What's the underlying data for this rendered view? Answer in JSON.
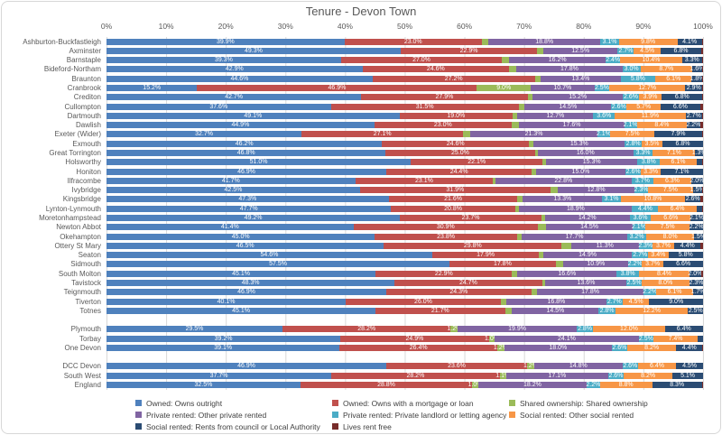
{
  "chart_data": {
    "type": "bar",
    "orientation": "horizontal-stacked",
    "title": "Tenure - Devon Town",
    "x_axis": {
      "range": [
        0,
        100
      ],
      "ticks": [
        "0%",
        "10%",
        "20%",
        "30%",
        "40%",
        "50%",
        "60%",
        "70%",
        "80%",
        "90%",
        "100%"
      ]
    },
    "grid": true,
    "legend_position": "bottom",
    "series": [
      {
        "key": "owned_outright",
        "label": "Owned: Owns outright",
        "color": "#4F81BD"
      },
      {
        "key": "owned_mortgage",
        "label": "Owned: Owns with a mortgage or loan",
        "color": "#C0504D"
      },
      {
        "key": "shared_ownership",
        "label": "Shared ownership: Shared ownership",
        "color": "#9BBB59"
      },
      {
        "key": "private_other",
        "label": "Private rented: Other private rented",
        "color": "#8064A2"
      },
      {
        "key": "private_landlord",
        "label": "Private rented: Private landlord or letting agency",
        "color": "#4BACC6"
      },
      {
        "key": "social_other",
        "label": "Social rented: Other social rented",
        "color": "#F79646"
      },
      {
        "key": "social_council",
        "label": "Social rented: Rents from council or Local Authority",
        "color": "#2B4C73"
      },
      {
        "key": "rent_free",
        "label": "Lives rent free",
        "color": "#772C2A"
      }
    ],
    "legend_columns": [
      [
        0,
        3,
        6
      ],
      [
        1,
        4,
        7
      ],
      [
        2,
        5
      ]
    ],
    "rows": [
      {
        "name": "Ashburton-Buckfastleigh",
        "values": [
          39.9,
          23.0,
          1.1,
          18.8,
          3.1,
          9.8,
          4.1,
          0.2
        ]
      },
      {
        "name": "Axminster",
        "values": [
          49.3,
          22.9,
          1.0,
          12.5,
          2.7,
          4.5,
          6.8,
          0.3
        ]
      },
      {
        "name": "Barnstaple",
        "values": [
          39.3,
          27.0,
          1.2,
          16.2,
          2.4,
          10.4,
          3.3,
          0.2
        ]
      },
      {
        "name": "Bideford-Northam",
        "values": [
          42.9,
          24.6,
          1.2,
          17.8,
          3.0,
          8.7,
          1.6,
          0.2
        ]
      },
      {
        "name": "Braunton",
        "values": [
          44.6,
          27.2,
          1.0,
          13.4,
          5.8,
          6.1,
          1.8,
          0.1
        ]
      },
      {
        "name": "Cranbrook",
        "values": [
          15.2,
          46.9,
          9.0,
          10.7,
          2.5,
          12.7,
          2.9,
          0.1
        ]
      },
      {
        "name": "Crediton",
        "values": [
          42.7,
          27.9,
          0.8,
          15.2,
          2.6,
          3.9,
          6.8,
          0.1
        ]
      },
      {
        "name": "Cullompton",
        "values": [
          37.6,
          31.5,
          1.0,
          14.5,
          2.6,
          5.7,
          6.6,
          0.5
        ]
      },
      {
        "name": "Dartmouth",
        "values": [
          49.1,
          19.0,
          0.8,
          12.7,
          3.6,
          11.9,
          2.7,
          0.2
        ]
      },
      {
        "name": "Dawlish",
        "values": [
          44.9,
          23.0,
          1.3,
          17.6,
          2.1,
          8.4,
          2.2,
          0.5
        ]
      },
      {
        "name": "Exeter (Wider)",
        "values": [
          32.7,
          27.1,
          1.2,
          21.3,
          2.1,
          7.5,
          7.9,
          0.2
        ]
      },
      {
        "name": "Exmouth",
        "values": [
          46.2,
          24.6,
          0.8,
          15.3,
          2.8,
          3.5,
          6.8,
          0.0
        ]
      },
      {
        "name": "Great Torrington",
        "values": [
          46.8,
          25.0,
          0.5,
          16.0,
          3.3,
          7.1,
          1.3,
          0.0
        ]
      },
      {
        "name": "Holsworthy",
        "values": [
          51.0,
          22.1,
          0.6,
          15.3,
          3.8,
          6.1,
          1.0,
          0.1
        ]
      },
      {
        "name": "Honiton",
        "values": [
          46.9,
          24.4,
          0.7,
          15.0,
          2.6,
          3.3,
          7.1,
          0.0
        ]
      },
      {
        "name": "Ilfracombe",
        "values": [
          41.7,
          23.1,
          0.4,
          22.8,
          3.7,
          6.3,
          2.0,
          0.0
        ]
      },
      {
        "name": "Ivybridge",
        "values": [
          42.5,
          31.9,
          1.3,
          12.8,
          2.3,
          7.5,
          1.5,
          0.2
        ]
      },
      {
        "name": "Kingsbridge",
        "values": [
          47.3,
          21.6,
          0.9,
          13.3,
          3.1,
          10.8,
          2.6,
          0.4
        ]
      },
      {
        "name": "Lynton-Lynmouth",
        "values": [
          47.7,
          20.8,
          0.7,
          18.9,
          4.4,
          6.4,
          1.0,
          0.1
        ]
      },
      {
        "name": "Moretonhampstead",
        "values": [
          49.2,
          23.7,
          0.6,
          14.2,
          3.6,
          6.6,
          2.1,
          0.0
        ]
      },
      {
        "name": "Newton Abbot",
        "values": [
          41.4,
          30.9,
          1.4,
          14.5,
          2.1,
          7.5,
          2.2,
          0.0
        ]
      },
      {
        "name": "Okehampton",
        "values": [
          45.0,
          23.8,
          0.8,
          17.7,
          3.2,
          8.0,
          1.5,
          0.0
        ]
      },
      {
        "name": "Ottery St Mary",
        "values": [
          46.5,
          29.8,
          1.6,
          11.3,
          2.3,
          3.7,
          4.4,
          0.4
        ]
      },
      {
        "name": "Seaton",
        "values": [
          54.6,
          17.9,
          0.7,
          14.9,
          2.7,
          3.4,
          5.8,
          0.0
        ]
      },
      {
        "name": "Sidmouth",
        "values": [
          57.5,
          17.8,
          1.3,
          10.9,
          2.2,
          3.7,
          6.6,
          0.0
        ]
      },
      {
        "name": "South Molton",
        "values": [
          45.1,
          22.9,
          0.9,
          16.6,
          3.8,
          8.4,
          2.0,
          0.3
        ]
      },
      {
        "name": "Tavistock",
        "values": [
          48.3,
          24.7,
          0.6,
          13.6,
          2.5,
          8.0,
          2.3,
          0.0
        ]
      },
      {
        "name": "Teignmouth",
        "values": [
          46.9,
          24.3,
          1.0,
          17.8,
          2.2,
          6.1,
          1.7,
          0.0
        ]
      },
      {
        "name": "Tiverton",
        "values": [
          40.1,
          26.0,
          0.9,
          16.8,
          2.7,
          4.5,
          9.0,
          0.0
        ]
      },
      {
        "name": "Totnes",
        "values": [
          45.1,
          21.7,
          1.2,
          14.5,
          2.8,
          12.2,
          2.5,
          0.0
        ]
      },
      {
        "spacer": true
      },
      {
        "name": "Plymouth",
        "summary": true,
        "values": [
          29.5,
          28.2,
          1.2,
          19.9,
          2.8,
          12.0,
          6.4,
          0.0
        ]
      },
      {
        "name": "Torbay",
        "summary": true,
        "values": [
          39.2,
          24.9,
          1.0,
          24.1,
          2.5,
          7.4,
          0.9,
          0.0
        ]
      },
      {
        "name": "One Devon",
        "summary": true,
        "values": [
          39.1,
          26.4,
          1.2,
          18.0,
          2.6,
          8.2,
          4.4,
          0.1
        ]
      },
      {
        "spacer": true
      },
      {
        "name": "DCC Devon",
        "summary": true,
        "values": [
          46.9,
          23.6,
          1.2,
          14.8,
          2.6,
          6.4,
          4.5,
          0.0
        ]
      },
      {
        "name": "South West",
        "summary": true,
        "values": [
          37.7,
          28.2,
          1.1,
          17.1,
          2.6,
          8.2,
          5.1,
          0.0
        ]
      },
      {
        "name": "England",
        "summary": true,
        "values": [
          32.5,
          28.8,
          1.0,
          18.2,
          2.2,
          8.8,
          8.3,
          0.2
        ]
      }
    ]
  },
  "colors": {
    "gridline": "#d9d9d9",
    "title_text": "#595959",
    "axis_text": "#595959",
    "label_text": "#595959",
    "segment_text": "#ffffff"
  }
}
